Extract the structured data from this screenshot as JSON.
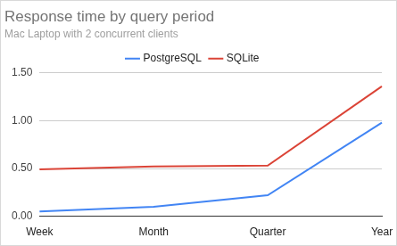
{
  "chart_data": {
    "type": "line",
    "title": "Response time by query period",
    "subtitle": "Mac Laptop with 2 concurrent clients",
    "categories": [
      "Week",
      "Month",
      "Quarter",
      "Year"
    ],
    "series": [
      {
        "name": "PostgreSQL",
        "color": "#4285f4",
        "values": [
          0.05,
          0.1,
          0.22,
          0.98
        ]
      },
      {
        "name": "SQLite",
        "color": "#db4437",
        "values": [
          0.49,
          0.52,
          0.53,
          1.36
        ]
      }
    ],
    "ylim": [
      0,
      1.5
    ],
    "yticks": [
      {
        "value": 0,
        "label": "0.00"
      },
      {
        "value": 0.5,
        "label": "0.50"
      },
      {
        "value": 1,
        "label": "1.00"
      },
      {
        "value": 1.5,
        "label": "1.50"
      }
    ],
    "grid": true,
    "legend": "top"
  }
}
